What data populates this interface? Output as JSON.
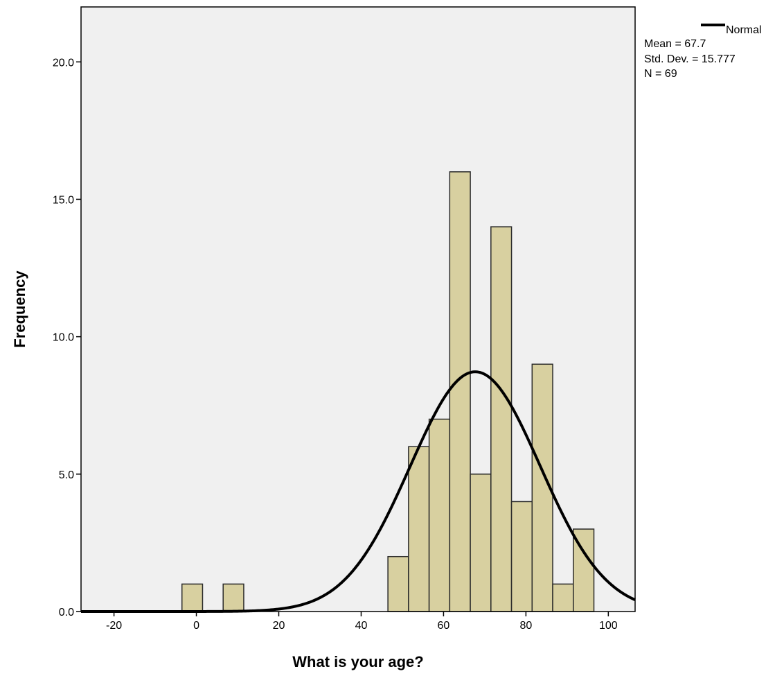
{
  "chart_data": {
    "type": "bar",
    "subtype": "histogram",
    "xlabel": "What is your age?",
    "ylabel": "Frequency",
    "xlim": [
      -28,
      106.5
    ],
    "ylim": [
      0,
      22
    ],
    "x_ticks": [
      -20,
      0,
      20,
      40,
      60,
      80,
      100
    ],
    "y_ticks": [
      0,
      5,
      10,
      15,
      20
    ],
    "x_tick_labels": [
      "-20",
      "0",
      "20",
      "40",
      "60",
      "80",
      "100"
    ],
    "y_tick_labels": [
      "0.0",
      "5.0",
      "10.0",
      "15.0",
      "20.0"
    ],
    "bin_width": 5,
    "bins": [
      {
        "start": -3.5,
        "end": 1.5,
        "count": 1
      },
      {
        "start": 6.5,
        "end": 11.5,
        "count": 1
      },
      {
        "start": 46.5,
        "end": 51.5,
        "count": 2
      },
      {
        "start": 51.5,
        "end": 56.5,
        "count": 6
      },
      {
        "start": 56.5,
        "end": 61.5,
        "count": 7
      },
      {
        "start": 61.5,
        "end": 66.5,
        "count": 16
      },
      {
        "start": 66.5,
        "end": 71.5,
        "count": 5
      },
      {
        "start": 71.5,
        "end": 76.5,
        "count": 14
      },
      {
        "start": 76.5,
        "end": 81.5,
        "count": 4
      },
      {
        "start": 81.5,
        "end": 86.5,
        "count": 9
      },
      {
        "start": 86.5,
        "end": 91.5,
        "count": 1
      },
      {
        "start": 91.5,
        "end": 96.5,
        "count": 3
      }
    ],
    "normal_curve": {
      "mean": 67.7,
      "std_dev": 15.777,
      "n": 69
    },
    "legend": {
      "position": "top-right",
      "series_label": "Normal",
      "lines": [
        "Mean = 67.7",
        "Std. Dev. = 15.777",
        "N = 69"
      ]
    },
    "grid": false,
    "colors": {
      "bar_fill": "#d8d0a0",
      "bar_stroke": "#2a2a2a",
      "plot_bg": "#f0f0f0",
      "curve": "#000000"
    }
  }
}
